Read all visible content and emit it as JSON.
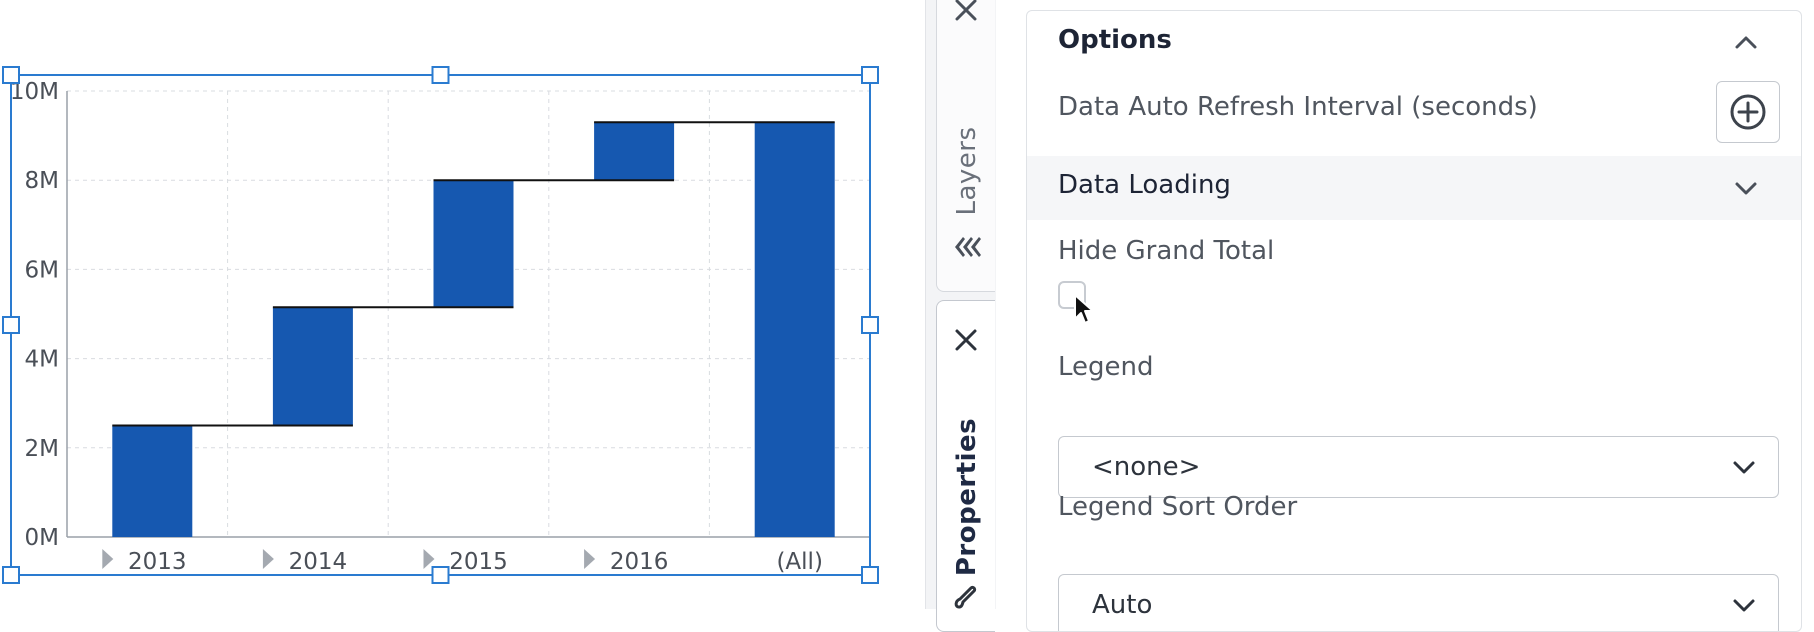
{
  "chart_data": {
    "type": "waterfall",
    "categories": [
      "2013",
      "2014",
      "2015",
      "2016",
      "(All)"
    ],
    "values": [
      2.5,
      2.65,
      2.85,
      1.3,
      9.3
    ],
    "cumulative_end": [
      2.5,
      5.15,
      8.0,
      9.3,
      9.3
    ],
    "is_total": [
      false,
      false,
      false,
      false,
      true
    ],
    "y_ticks": [
      "0M",
      "2M",
      "4M",
      "6M",
      "8M",
      "10M"
    ],
    "ylim": [
      0,
      10
    ],
    "grid": true,
    "bar_color": "#1658b0",
    "expandable_categories": [
      true,
      true,
      true,
      true,
      false
    ]
  },
  "side_tabs": {
    "layers": {
      "label": "Layers"
    },
    "properties": {
      "label": "Properties"
    }
  },
  "panel": {
    "options_title": "Options",
    "refresh_label": "Data Auto Refresh Interval (seconds)",
    "data_loading_label": "Data Loading",
    "hide_total_label": "Hide Grand Total",
    "hide_total_checked": false,
    "legend_label": "Legend",
    "legend_value": "<none>",
    "legend_sort_label": "Legend Sort Order",
    "legend_sort_value": "Auto"
  },
  "colors": {
    "accent": "#1658b0",
    "selection": "#2a7bd0"
  }
}
